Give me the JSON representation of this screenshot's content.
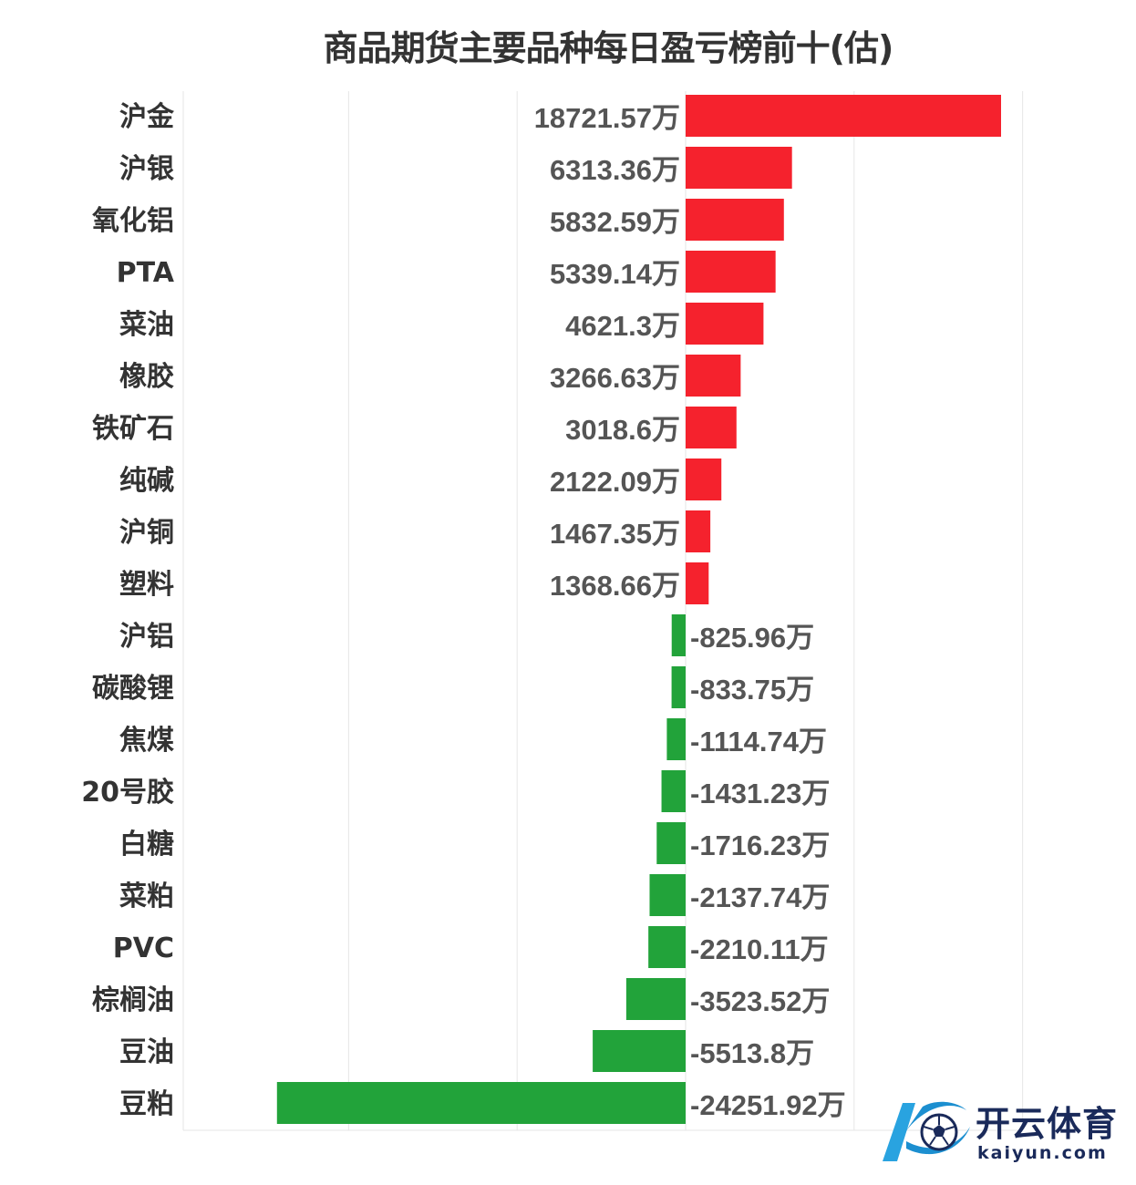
{
  "chart_data": {
    "type": "bar",
    "orientation": "horizontal",
    "title": "商品期货主要品种每日盈亏榜前十(估)",
    "unit_suffix": "万",
    "categories": [
      "沪金",
      "沪银",
      "氧化铝",
      "PTA",
      "菜油",
      "橡胶",
      "铁矿石",
      "纯碱",
      "沪铜",
      "塑料",
      "沪铝",
      "碳酸锂",
      "焦煤",
      "20号胶",
      "白糖",
      "菜粕",
      "PVC",
      "棕榈油",
      "豆油",
      "豆粕"
    ],
    "values": [
      18721.57,
      6313.36,
      5832.59,
      5339.14,
      4621.3,
      3266.63,
      3018.6,
      2122.09,
      1467.35,
      1368.66,
      -825.96,
      -833.75,
      -1114.74,
      -1431.23,
      -1716.23,
      -2137.74,
      -2210.11,
      -3523.52,
      -5513.8,
      -24251.92
    ],
    "value_labels": [
      "18721.57万",
      "6313.36万",
      "5832.59万",
      "5339.14万",
      "4621.3万",
      "3266.63万",
      "3018.6万",
      "2122.09万",
      "1467.35万",
      "1368.66万",
      "-825.96万",
      "-833.75万",
      "-1114.74万",
      "-1431.23万",
      "-1716.23万",
      "-2137.74万",
      "-2210.11万",
      "-3523.52万",
      "-5513.8万",
      "-24251.92万"
    ],
    "xlim": [
      -30000,
      20000
    ],
    "grid": true,
    "colors": {
      "positive": "#f5222d",
      "negative": "#22a33a",
      "grid": "#e6e6e6",
      "category_text": "#333333",
      "value_text": "#555555"
    }
  },
  "watermark": {
    "logo_icon": "kaiyun-k-ball-icon",
    "brand_cn": "开云体育",
    "brand_en": "kaiyun.com"
  }
}
